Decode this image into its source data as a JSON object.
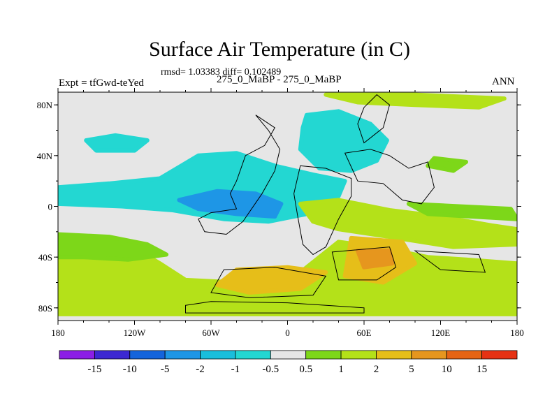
{
  "header": {
    "title": "Surface Air Temperature (in C)",
    "stats": "rmsd= 1.03383 diff= 0.102489",
    "expt": "Expt = tfGwd-teYed",
    "subtitle": "275_0_MaBP - 275_0_MaBP",
    "season": "ANN"
  },
  "chart_data": {
    "type": "heatmap",
    "title": "Surface Air Temperature (in C)",
    "x_ticks": [
      "180",
      "120W",
      "60W",
      "0",
      "60E",
      "120E",
      "180"
    ],
    "x_values": [
      -180,
      -120,
      -60,
      0,
      60,
      120,
      180
    ],
    "y_ticks": [
      "80N",
      "40N",
      "0",
      "40S",
      "80S"
    ],
    "y_values": [
      80,
      40,
      0,
      -40,
      -80
    ],
    "xlim": [
      -180,
      180
    ],
    "ylim": [
      -90,
      90
    ],
    "colorbar": {
      "labels": [
        "-15",
        "-10",
        "-5",
        "-2",
        "-1",
        "-0.5",
        "0.5",
        "1",
        "2",
        "5",
        "10",
        "15"
      ],
      "colors": [
        "#8c1ee6",
        "#3c28d2",
        "#1464dc",
        "#1e96e6",
        "#19bedc",
        "#23d7d2",
        "#e6e6e6",
        "#7dd719",
        "#b4e119",
        "#e6be19",
        "#e6961e",
        "#e66414",
        "#e63214"
      ]
    },
    "regions": [
      {
        "name": "cool",
        "color": "#23d7d2",
        "points": [
          [
            -180,
            15
          ],
          [
            -140,
            18
          ],
          [
            -100,
            22
          ],
          [
            -70,
            40
          ],
          [
            -40,
            42
          ],
          [
            -10,
            32
          ],
          [
            20,
            25
          ],
          [
            45,
            20
          ],
          [
            40,
            8
          ],
          [
            15,
            -6
          ],
          [
            -15,
            -12
          ],
          [
            -50,
            -10
          ],
          [
            -90,
            -3
          ],
          [
            -130,
            0
          ],
          [
            -180,
            2
          ]
        ]
      },
      {
        "name": "cool-arctic",
        "color": "#23d7d2",
        "points": [
          [
            15,
            72
          ],
          [
            40,
            75
          ],
          [
            65,
            65
          ],
          [
            78,
            52
          ],
          [
            70,
            36
          ],
          [
            50,
            28
          ],
          [
            25,
            30
          ],
          [
            10,
            45
          ],
          [
            12,
            62
          ]
        ]
      },
      {
        "name": "cool-npac",
        "color": "#23d7d2",
        "points": [
          [
            -158,
            52
          ],
          [
            -135,
            56
          ],
          [
            -110,
            52
          ],
          [
            -120,
            44
          ],
          [
            -150,
            44
          ]
        ]
      },
      {
        "name": "cool-deep",
        "color": "#1e96e6",
        "points": [
          [
            -85,
            5
          ],
          [
            -55,
            12
          ],
          [
            -25,
            10
          ],
          [
            -5,
            2
          ],
          [
            -10,
            -8
          ],
          [
            -40,
            -6
          ],
          [
            -70,
            -2
          ]
        ]
      },
      {
        "name": "warm-south",
        "color": "#b4e119",
        "points": [
          [
            -180,
            -25
          ],
          [
            -150,
            -28
          ],
          [
            -120,
            -33
          ],
          [
            -100,
            -45
          ],
          [
            -80,
            -58
          ],
          [
            -40,
            -60
          ],
          [
            10,
            -52
          ],
          [
            40,
            -28
          ],
          [
            70,
            -32
          ],
          [
            110,
            -40
          ],
          [
            140,
            -42
          ],
          [
            180,
            -45
          ],
          [
            180,
            -85
          ],
          [
            -180,
            -85
          ]
        ]
      },
      {
        "name": "warm-south-green",
        "color": "#7dd719",
        "points": [
          [
            -180,
            -22
          ],
          [
            -140,
            -24
          ],
          [
            -110,
            -30
          ],
          [
            -95,
            -38
          ],
          [
            -125,
            -42
          ],
          [
            -160,
            -40
          ],
          [
            -180,
            -40
          ]
        ]
      },
      {
        "name": "warm-africa",
        "color": "#b4e119",
        "points": [
          [
            10,
            2
          ],
          [
            40,
            5
          ],
          [
            80,
            -3
          ],
          [
            120,
            -8
          ],
          [
            160,
            -15
          ],
          [
            180,
            -18
          ],
          [
            180,
            -30
          ],
          [
            130,
            -32
          ],
          [
            80,
            -24
          ],
          [
            40,
            -18
          ],
          [
            20,
            -12
          ]
        ]
      },
      {
        "name": "orange-1",
        "color": "#e6be19",
        "points": [
          [
            -40,
            -50
          ],
          [
            0,
            -48
          ],
          [
            30,
            -52
          ],
          [
            10,
            -65
          ],
          [
            -30,
            -68
          ],
          [
            -55,
            -62
          ]
        ]
      },
      {
        "name": "orange-2",
        "color": "#e6be19",
        "points": [
          [
            50,
            -25
          ],
          [
            90,
            -28
          ],
          [
            100,
            -45
          ],
          [
            75,
            -60
          ],
          [
            45,
            -55
          ]
        ]
      },
      {
        "name": "orange-3",
        "color": "#e6961e",
        "points": [
          [
            55,
            -35
          ],
          [
            80,
            -35
          ],
          [
            82,
            -45
          ],
          [
            60,
            -48
          ]
        ]
      },
      {
        "name": "warm-arctic",
        "color": "#b4e119",
        "points": [
          [
            30,
            88
          ],
          [
            100,
            88
          ],
          [
            170,
            85
          ],
          [
            150,
            78
          ],
          [
            100,
            80
          ],
          [
            55,
            82
          ]
        ]
      },
      {
        "name": "warm-east",
        "color": "#7dd719",
        "points": [
          [
            115,
            38
          ],
          [
            140,
            35
          ],
          [
            130,
            28
          ],
          [
            110,
            32
          ]
        ]
      },
      {
        "name": "warm-east2",
        "color": "#7dd719",
        "points": [
          [
            95,
            2
          ],
          [
            175,
            -2
          ],
          [
            180,
            -10
          ],
          [
            110,
            -6
          ]
        ]
      }
    ],
    "continents": [
      [
        [
          -25,
          72
        ],
        [
          -10,
          62
        ],
        [
          -18,
          48
        ],
        [
          -33,
          40
        ],
        [
          -40,
          20
        ],
        [
          -45,
          10
        ],
        [
          -40,
          -2
        ],
        [
          -60,
          -5
        ],
        [
          -70,
          -10
        ],
        [
          -65,
          -20
        ],
        [
          -48,
          -22
        ],
        [
          -35,
          -12
        ],
        [
          -20,
          10
        ],
        [
          -10,
          28
        ],
        [
          -6,
          45
        ],
        [
          -15,
          60
        ]
      ],
      [
        [
          10,
          32
        ],
        [
          30,
          30
        ],
        [
          50,
          22
        ],
        [
          50,
          8
        ],
        [
          40,
          -10
        ],
        [
          30,
          -32
        ],
        [
          20,
          -38
        ],
        [
          12,
          -30
        ],
        [
          8,
          -8
        ],
        [
          5,
          10
        ]
      ],
      [
        [
          45,
          42
        ],
        [
          65,
          45
        ],
        [
          80,
          40
        ],
        [
          95,
          30
        ],
        [
          110,
          35
        ],
        [
          115,
          15
        ],
        [
          105,
          2
        ],
        [
          90,
          5
        ],
        [
          75,
          18
        ],
        [
          55,
          20
        ]
      ],
      [
        [
          35,
          -36
        ],
        [
          80,
          -32
        ],
        [
          85,
          -48
        ],
        [
          70,
          -58
        ],
        [
          40,
          -58
        ]
      ],
      [
        [
          -50,
          -50
        ],
        [
          -10,
          -48
        ],
        [
          30,
          -55
        ],
        [
          20,
          -70
        ],
        [
          -30,
          -72
        ],
        [
          -60,
          -68
        ]
      ],
      [
        [
          -80,
          -78
        ],
        [
          -60,
          -75
        ],
        [
          0,
          -76
        ],
        [
          60,
          -80
        ],
        [
          60,
          -84
        ],
        [
          -80,
          -84
        ]
      ],
      [
        [
          100,
          -35
        ],
        [
          150,
          -38
        ],
        [
          155,
          -52
        ],
        [
          120,
          -50
        ]
      ],
      [
        [
          60,
          78
        ],
        [
          70,
          88
        ],
        [
          80,
          80
        ],
        [
          75,
          62
        ],
        [
          60,
          50
        ],
        [
          55,
          65
        ]
      ]
    ]
  }
}
